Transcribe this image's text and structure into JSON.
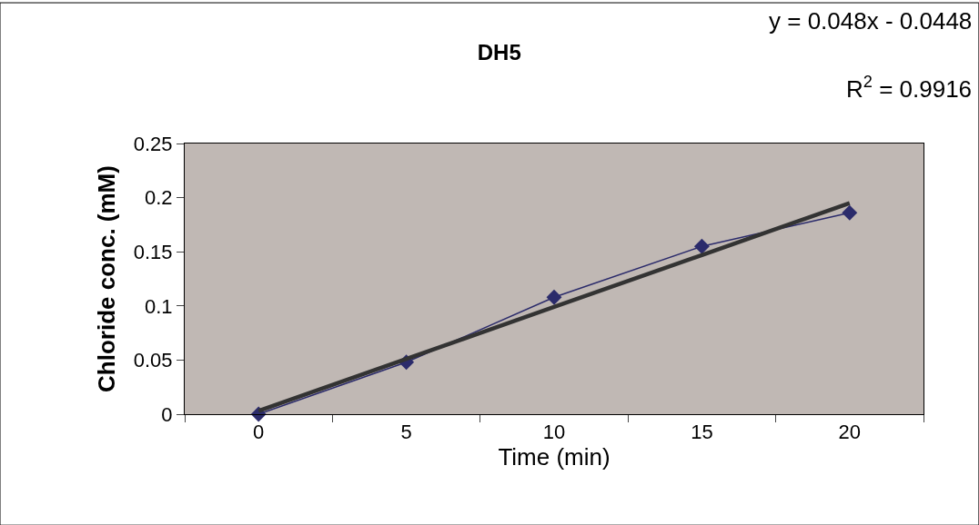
{
  "chart_data": {
    "type": "line",
    "title": "DH5",
    "xlabel": "Time (min)",
    "ylabel": "Chloride conc. (mM)",
    "categories": [
      "0",
      "5",
      "10",
      "15",
      "20"
    ],
    "series": [
      {
        "color": "#2b2b6b",
        "values": [
          0,
          0.048,
          0.108,
          0.155,
          0.186
        ],
        "marker": "diamond"
      },
      {
        "type": "line",
        "color": "#333333",
        "values": [
          0.003,
          0.051,
          0.099,
          0.147,
          0.195
        ],
        "marker": "none"
      }
    ],
    "ylim": [
      0,
      0.25
    ],
    "yticks": [
      0,
      0.05,
      0.1,
      0.15,
      0.2,
      0.25
    ],
    "annotations": [
      "y = 0.048x - 0.0448",
      "R$^{2}$ = 0.9916"
    ],
    "grid": false
  }
}
